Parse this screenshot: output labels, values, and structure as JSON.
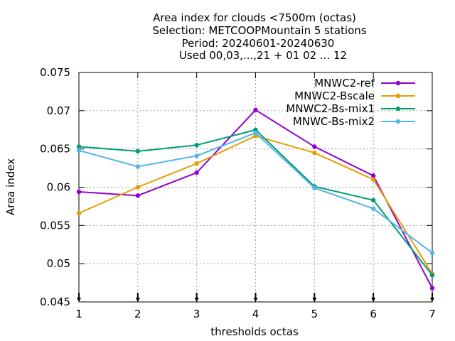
{
  "chart_data": {
    "type": "line",
    "title_lines": [
      "Area index  for clouds <7500m (octas)",
      "Selection: METCOOPMountain      5 stations",
      "Period: 20240601-20240630",
      "Used 00,03,...,21 + 01 02 ... 12"
    ],
    "xlabel": "thresholds octas",
    "ylabel": "Area index",
    "x": [
      1,
      2,
      3,
      4,
      5,
      6,
      7
    ],
    "x_ticks": [
      "1",
      "2",
      "3",
      "4",
      "5",
      "6",
      "7"
    ],
    "xlim": [
      1,
      7
    ],
    "ylim": [
      0.045,
      0.075
    ],
    "y_ticks": [
      0.045,
      0.05,
      0.055,
      0.06,
      0.065,
      0.07,
      0.075
    ],
    "y_tick_labels": [
      "0.045",
      "0.05",
      "0.055",
      "0.06",
      "0.065",
      "0.07",
      "0.075"
    ],
    "grid": true,
    "legend_position": "top-right",
    "series": [
      {
        "name": "MNWC2-ref",
        "color": "#9400d3",
        "values": [
          0.0594,
          0.0589,
          0.0619,
          0.0701,
          0.0653,
          0.0615,
          0.0468
        ]
      },
      {
        "name": "MNWC2-Bscale",
        "color": "#e69f00",
        "values": [
          0.0566,
          0.06,
          0.0631,
          0.0667,
          0.0645,
          0.061,
          0.0487
        ]
      },
      {
        "name": "MNWC2-Bs-mix1",
        "color": "#009e73",
        "values": [
          0.0653,
          0.0647,
          0.0655,
          0.0675,
          0.0601,
          0.0583,
          0.0485
        ]
      },
      {
        "name": "MNWC-Bs-mix2",
        "color": "#56b4e9",
        "values": [
          0.0648,
          0.0627,
          0.0641,
          0.0671,
          0.0599,
          0.0572,
          0.0514
        ]
      }
    ]
  }
}
